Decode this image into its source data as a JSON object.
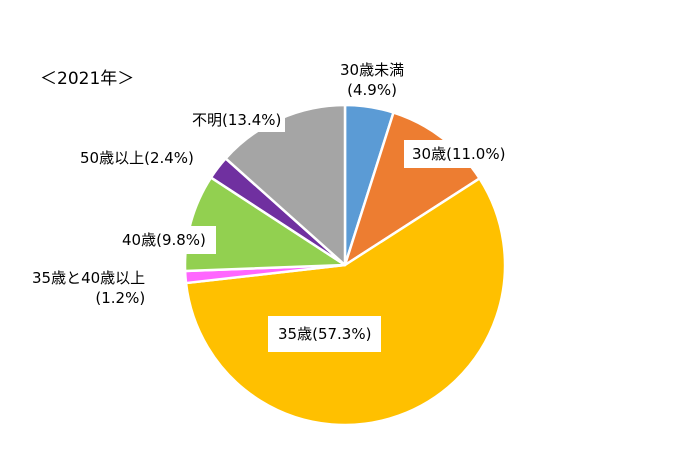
{
  "chart_data": {
    "type": "pie",
    "title": "＜2021年＞",
    "start_angle_deg": 0,
    "direction": "clockwise",
    "slices": [
      {
        "label": "30歳未満",
        "value": 4.9,
        "value_text": "(4.9%)",
        "color": "#5B9BD5"
      },
      {
        "label": "30歳",
        "value": 11.0,
        "value_text": "(11.0%)",
        "color": "#ED7D31"
      },
      {
        "label": "35歳",
        "value": 57.3,
        "value_text": "(57.3%)",
        "color": "#FFC000"
      },
      {
        "label": "35歳と40歳以上",
        "value": 1.2,
        "value_text": "(1.2%)",
        "color": "#FF66FF"
      },
      {
        "label": "40歳",
        "value": 9.8,
        "value_text": "(9.8%)",
        "color": "#92D050"
      },
      {
        "label": "50歳以上",
        "value": 2.4,
        "value_text": "(2.4%)",
        "color": "#7030A0"
      },
      {
        "label": "不明",
        "value": 13.4,
        "value_text": "(13.4%)",
        "color": "#A5A5A5"
      }
    ]
  }
}
